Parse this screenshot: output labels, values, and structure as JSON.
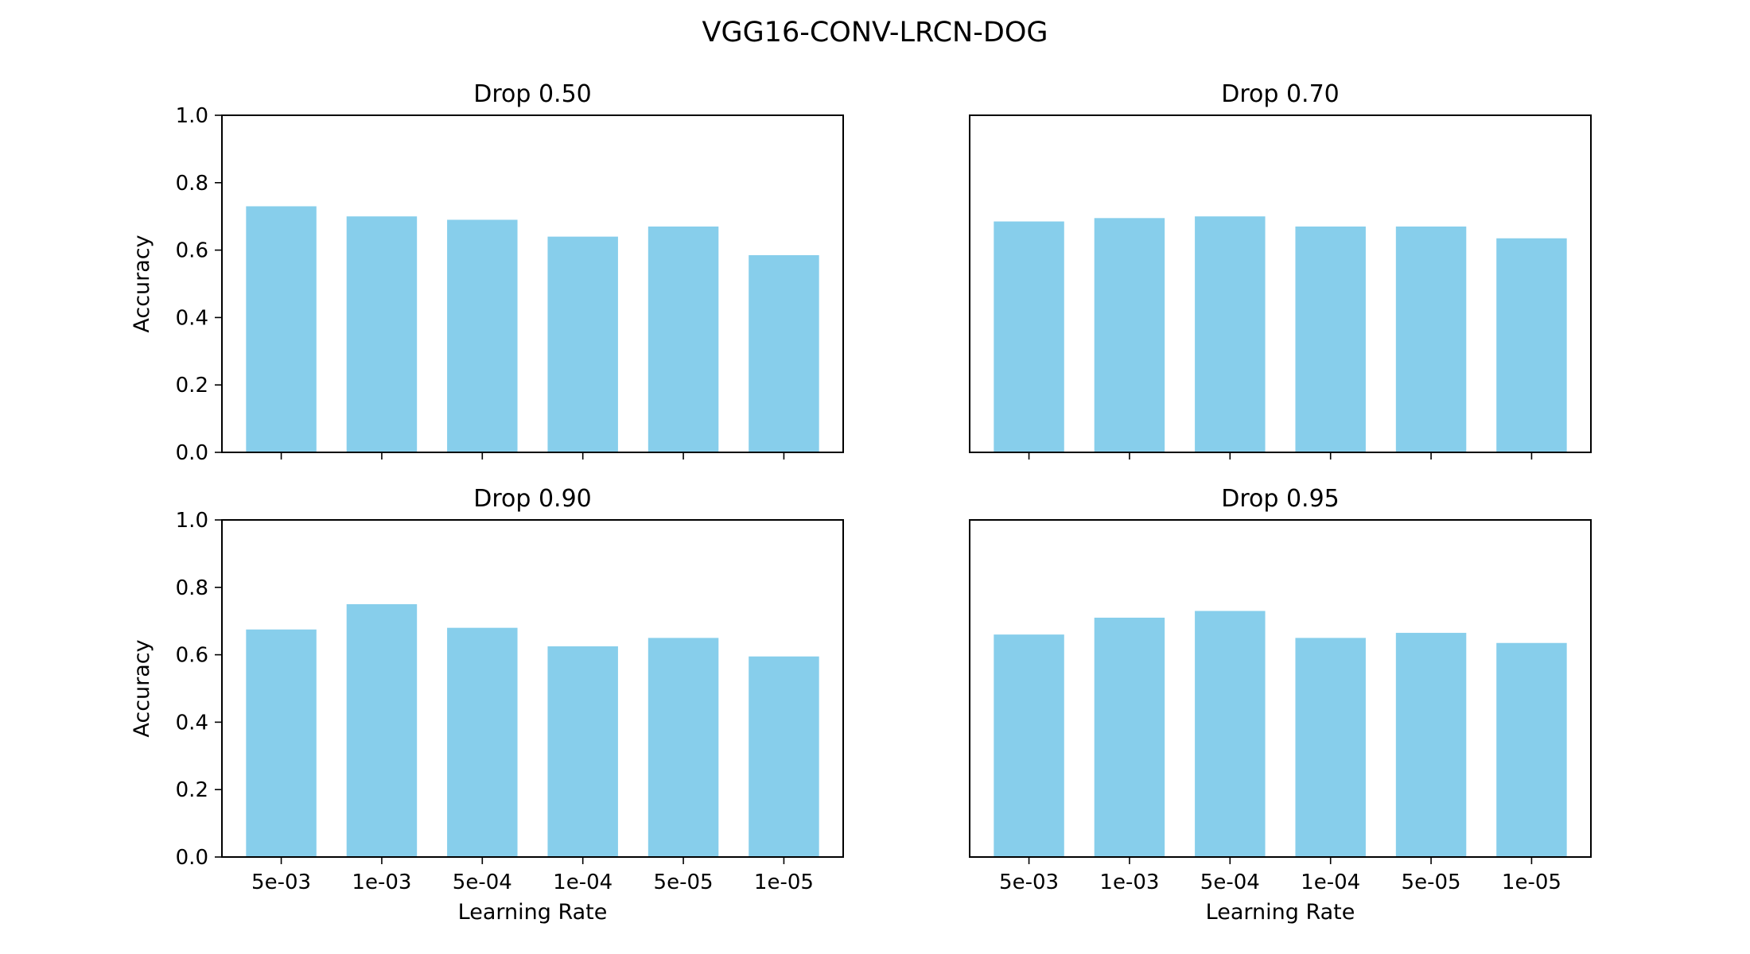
{
  "figure": {
    "title": "VGG16-CONV-LRCN-DOG"
  },
  "colors": {
    "bar": "#87ceeb",
    "axis": "#000000",
    "background": "#ffffff"
  },
  "chart_data": [
    {
      "type": "bar",
      "title": "Drop 0.50",
      "categories": [
        "5e-03",
        "1e-03",
        "5e-04",
        "1e-04",
        "5e-05",
        "1e-05"
      ],
      "values": [
        0.73,
        0.7,
        0.69,
        0.64,
        0.67,
        0.585
      ],
      "xlabel": "",
      "ylabel": "Accuracy",
      "ylim": [
        0,
        1.0
      ],
      "yticks": [
        "0.0",
        "0.2",
        "0.4",
        "0.6",
        "0.8",
        "1.0"
      ],
      "grid": false
    },
    {
      "type": "bar",
      "title": "Drop 0.70",
      "categories": [
        "5e-03",
        "1e-03",
        "5e-04",
        "1e-04",
        "5e-05",
        "1e-05"
      ],
      "values": [
        0.685,
        0.695,
        0.7,
        0.67,
        0.67,
        0.635
      ],
      "xlabel": "",
      "ylabel": "",
      "ylim": [
        0,
        1.0
      ],
      "grid": false
    },
    {
      "type": "bar",
      "title": "Drop 0.90",
      "categories": [
        "5e-03",
        "1e-03",
        "5e-04",
        "1e-04",
        "5e-05",
        "1e-05"
      ],
      "values": [
        0.675,
        0.75,
        0.68,
        0.625,
        0.65,
        0.595
      ],
      "xlabel": "Learning Rate",
      "ylabel": "Accuracy",
      "ylim": [
        0,
        1.0
      ],
      "yticks": [
        "0.0",
        "0.2",
        "0.4",
        "0.6",
        "0.8",
        "1.0"
      ],
      "grid": false
    },
    {
      "type": "bar",
      "title": "Drop 0.95",
      "categories": [
        "5e-03",
        "1e-03",
        "5e-04",
        "1e-04",
        "5e-05",
        "1e-05"
      ],
      "values": [
        0.66,
        0.71,
        0.73,
        0.65,
        0.665,
        0.635
      ],
      "xlabel": "Learning Rate",
      "ylabel": "",
      "ylim": [
        0,
        1.0
      ],
      "grid": false
    }
  ]
}
